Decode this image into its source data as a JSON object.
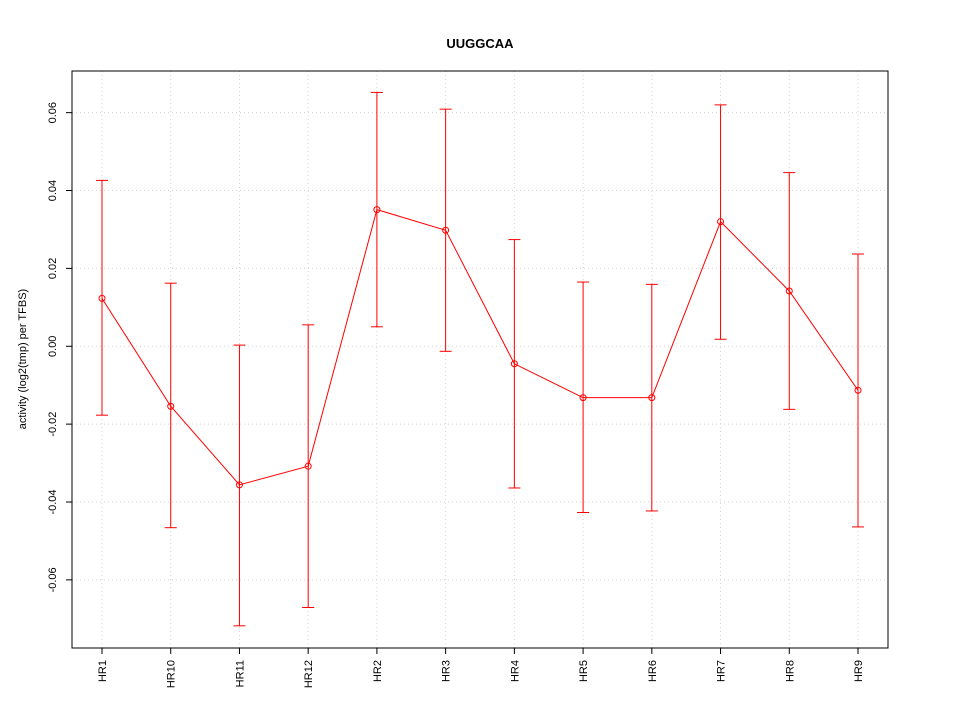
{
  "chart_data": {
    "type": "line",
    "title": "UUGGCAA",
    "xlabel": "",
    "ylabel": "activity (log2(tmp) per TFBS)",
    "categories": [
      "HR1",
      "HR10",
      "HR11",
      "HR12",
      "HR2",
      "HR3",
      "HR4",
      "HR5",
      "HR6",
      "HR7",
      "HR8",
      "HR9"
    ],
    "values": [
      0.0123,
      -0.0154,
      -0.0356,
      -0.0308,
      0.0351,
      0.0298,
      -0.0045,
      -0.0132,
      -0.0132,
      0.032,
      0.0142,
      -0.0113
    ],
    "upper": [
      0.0426,
      0.0162,
      0.0003,
      0.0055,
      0.0652,
      0.0609,
      0.0274,
      0.0165,
      0.0159,
      0.062,
      0.0446,
      0.0237
    ],
    "lower": [
      -0.0177,
      -0.0466,
      -0.0718,
      -0.0671,
      0.005,
      -0.0013,
      -0.0364,
      -0.0427,
      -0.0423,
      0.0018,
      -0.0162,
      -0.0464
    ],
    "yticks": [
      -0.06,
      -0.04,
      -0.02,
      0.0,
      0.02,
      0.04,
      0.06
    ],
    "ytick_labels": [
      "-0.06",
      "-0.04",
      "-0.02",
      "0.00",
      "0.02",
      "0.04",
      "0.06"
    ],
    "ylim": [
      -0.0775,
      0.0707
    ],
    "grid": true,
    "color": "#ff0000"
  }
}
